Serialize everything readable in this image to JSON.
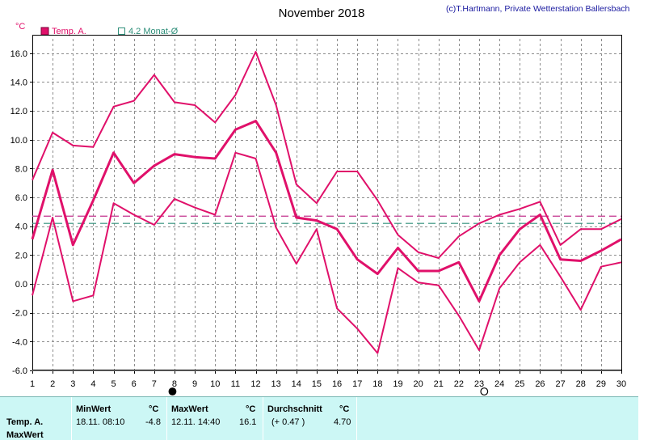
{
  "header": {
    "title": "November 2018",
    "credit": "(c)T.Hartmann, Private Wetterstation Ballersbach",
    "unit": "°C"
  },
  "legend": {
    "temp": "Temp. A.",
    "monthly": "4.2 Monat-Ø"
  },
  "colors": {
    "series": "#e0106a",
    "avg_month": "#2f8f7a",
    "avg_mean": "#c2348f",
    "grid": "#8c8c8c",
    "table_bg": "#ccf7f5"
  },
  "chart_data": {
    "type": "line",
    "title": "November 2018",
    "ylabel": "°C",
    "xlim": [
      1,
      30
    ],
    "ylim": [
      -6,
      17
    ],
    "grid": true,
    "legend_position": "top-left",
    "x": [
      1,
      2,
      3,
      4,
      5,
      6,
      7,
      8,
      9,
      10,
      11,
      12,
      13,
      14,
      15,
      16,
      17,
      18,
      19,
      20,
      21,
      22,
      23,
      24,
      25,
      26,
      27,
      28,
      29,
      30
    ],
    "x_ticks": [
      1,
      2,
      3,
      4,
      5,
      6,
      7,
      8,
      9,
      10,
      11,
      12,
      13,
      14,
      15,
      16,
      17,
      18,
      19,
      20,
      21,
      22,
      23,
      24,
      25,
      26,
      27,
      28,
      29,
      30
    ],
    "y_ticks": [
      16,
      14,
      12,
      10,
      8,
      6,
      4,
      2,
      0,
      -2,
      -4,
      -6
    ],
    "y_tick_labels": [
      "16.0",
      "14.0",
      "12.0",
      "10.0",
      "8.0",
      "6.0",
      "4.0",
      "2.0",
      "0.0",
      "-2.0",
      "-4.0",
      "-6.0"
    ],
    "series": [
      {
        "key": "max",
        "values": [
          7.2,
          10.5,
          9.6,
          9.5,
          12.3,
          12.7,
          14.5,
          12.6,
          12.4,
          11.2,
          13.1,
          16.1,
          12.4,
          6.9,
          5.6,
          7.8,
          7.8,
          5.8,
          3.4,
          2.2,
          1.8,
          3.3,
          4.2,
          4.8,
          5.2,
          5.7,
          2.7,
          3.8,
          3.8,
          4.5
        ]
      },
      {
        "key": "mean",
        "values": [
          3.1,
          7.9,
          2.7,
          5.8,
          9.1,
          7.0,
          8.2,
          9.0,
          8.8,
          8.7,
          10.7,
          11.3,
          9.1,
          4.6,
          4.4,
          3.8,
          1.7,
          0.7,
          2.5,
          0.9,
          0.9,
          1.5,
          -1.2,
          2.0,
          3.8,
          4.8,
          1.7,
          1.6,
          2.3,
          3.1
        ]
      },
      {
        "key": "min",
        "values": [
          -0.8,
          4.6,
          -1.2,
          -0.8,
          5.6,
          4.8,
          4.1,
          5.9,
          5.3,
          4.8,
          9.1,
          8.7,
          3.9,
          1.4,
          3.8,
          -1.7,
          -3.1,
          -4.8,
          1.1,
          0.1,
          -0.1,
          -2.2,
          -4.6,
          -0.3,
          1.5,
          2.7,
          0.5,
          -1.8,
          1.2,
          1.5
        ]
      }
    ],
    "reference_lines": [
      {
        "key": "monthly_avg",
        "value": 4.2
      },
      {
        "key": "data_avg",
        "value": 4.7
      }
    ],
    "moon_phases": [
      {
        "day": 7.9,
        "phase": "new"
      },
      {
        "day": 23.25,
        "phase": "full"
      }
    ]
  },
  "table": {
    "row_labels": [
      "Temp. A.",
      "MaxWert"
    ],
    "min_header": "MinWert",
    "min_unit": "°C",
    "min_time": "18.11.  08:10",
    "min_value": "-4.8",
    "max_header": "MaxWert",
    "max_unit": "°C",
    "max_time": "12.11.  14:40",
    "max_value": "16.1",
    "avg_header": "Durchschnitt",
    "avg_unit": "°C",
    "avg_delta": "(+ 0.47 )",
    "avg_value": "4.70"
  }
}
